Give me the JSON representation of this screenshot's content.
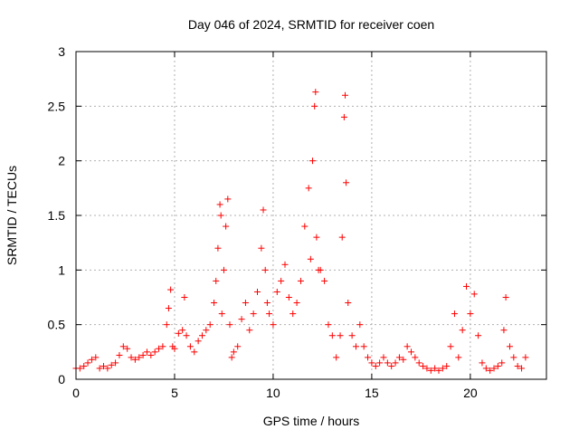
{
  "chart_data": {
    "type": "scatter",
    "title": "Day 046 of 2024, SRMTID for receiver coen",
    "xlabel": "GPS time / hours",
    "ylabel": "SRMTID / TECUs",
    "xlim": [
      0,
      23.86
    ],
    "ylim": [
      0,
      3
    ],
    "x_ticks": [
      0,
      5,
      10,
      15,
      20
    ],
    "x_tick_labels": [
      "0",
      "5",
      "10",
      "15",
      "20"
    ],
    "y_ticks": [
      0,
      0.5,
      1,
      1.5,
      2,
      2.5,
      3
    ],
    "y_tick_labels": [
      "0",
      "0.5",
      "1",
      "1.5",
      "2",
      "2.5",
      "3"
    ],
    "grid": true,
    "marker": "+",
    "marker_color": "#ff0000",
    "series": [
      {
        "name": "SRMTID",
        "x": [
          0.0,
          0.2,
          0.4,
          0.6,
          0.8,
          1.0,
          1.2,
          1.4,
          1.6,
          1.8,
          2.0,
          2.2,
          2.4,
          2.6,
          2.8,
          3.0,
          3.2,
          3.4,
          3.6,
          3.8,
          4.0,
          4.2,
          4.4,
          4.6,
          4.7,
          4.8,
          4.9,
          5.0,
          5.2,
          5.4,
          5.5,
          5.6,
          5.8,
          6.0,
          6.2,
          6.4,
          6.6,
          6.8,
          7.0,
          7.1,
          7.2,
          7.3,
          7.35,
          7.4,
          7.5,
          7.6,
          7.7,
          7.8,
          7.9,
          8.0,
          8.2,
          8.4,
          8.6,
          8.8,
          9.0,
          9.2,
          9.4,
          9.5,
          9.6,
          9.7,
          9.8,
          10.0,
          10.2,
          10.4,
          10.6,
          10.8,
          11.0,
          11.2,
          11.4,
          11.6,
          11.8,
          11.9,
          12.0,
          12.1,
          12.15,
          12.2,
          12.3,
          12.4,
          12.6,
          12.8,
          13.0,
          13.2,
          13.4,
          13.5,
          13.6,
          13.65,
          13.7,
          13.8,
          14.0,
          14.2,
          14.4,
          14.6,
          14.8,
          15.0,
          15.2,
          15.4,
          15.6,
          15.8,
          16.0,
          16.2,
          16.4,
          16.6,
          16.8,
          17.0,
          17.2,
          17.4,
          17.6,
          17.8,
          18.0,
          18.2,
          18.4,
          18.6,
          18.8,
          19.0,
          19.2,
          19.4,
          19.6,
          19.8,
          20.0,
          20.2,
          20.4,
          20.6,
          20.8,
          21.0,
          21.2,
          21.4,
          21.6,
          21.7,
          21.8,
          22.0,
          22.2,
          22.4,
          22.6,
          22.8
        ],
        "y": [
          0.1,
          0.1,
          0.12,
          0.15,
          0.18,
          0.2,
          0.1,
          0.12,
          0.1,
          0.13,
          0.15,
          0.22,
          0.3,
          0.28,
          0.2,
          0.18,
          0.2,
          0.22,
          0.25,
          0.22,
          0.25,
          0.28,
          0.3,
          0.5,
          0.65,
          0.82,
          0.3,
          0.28,
          0.42,
          0.45,
          0.75,
          0.4,
          0.3,
          0.25,
          0.35,
          0.4,
          0.45,
          0.5,
          0.7,
          0.9,
          1.2,
          1.6,
          1.5,
          0.6,
          1.0,
          1.4,
          1.65,
          0.5,
          0.2,
          0.25,
          0.3,
          0.55,
          0.7,
          0.45,
          0.6,
          0.8,
          1.2,
          1.55,
          1.0,
          0.7,
          0.6,
          0.5,
          0.8,
          0.9,
          1.05,
          0.75,
          0.6,
          0.7,
          0.9,
          1.4,
          1.75,
          1.1,
          2.0,
          2.5,
          2.63,
          1.3,
          1.0,
          1.0,
          0.9,
          0.5,
          0.4,
          0.2,
          0.4,
          1.3,
          2.4,
          2.6,
          1.8,
          0.7,
          0.4,
          0.3,
          0.5,
          0.3,
          0.2,
          0.15,
          0.12,
          0.15,
          0.2,
          0.15,
          0.12,
          0.15,
          0.2,
          0.18,
          0.3,
          0.25,
          0.2,
          0.15,
          0.12,
          0.1,
          0.08,
          0.1,
          0.08,
          0.1,
          0.12,
          0.3,
          0.6,
          0.2,
          0.45,
          0.85,
          0.6,
          0.78,
          0.4,
          0.15,
          0.1,
          0.08,
          0.1,
          0.12,
          0.15,
          0.45,
          0.75,
          0.3,
          0.2,
          0.12,
          0.1,
          0.2
        ]
      }
    ]
  }
}
